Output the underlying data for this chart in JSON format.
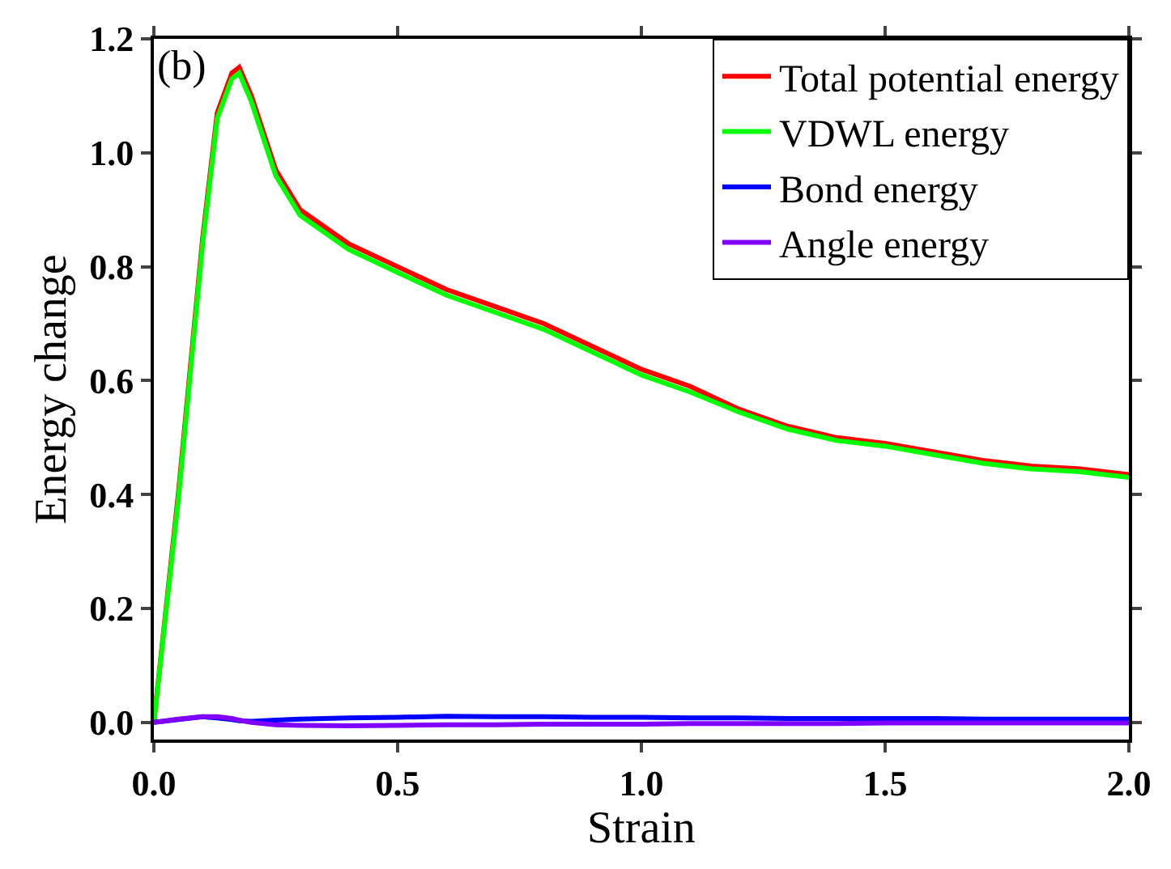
{
  "chart_data": {
    "type": "line",
    "xlabel": "Strain",
    "ylabel": "Energy change",
    "annotations": [
      "(b)"
    ],
    "x": [
      0,
      0.05,
      0.1,
      0.13,
      0.16,
      0.175,
      0.2,
      0.25,
      0.3,
      0.4,
      0.5,
      0.6,
      0.7,
      0.8,
      0.9,
      1.0,
      1.1,
      1.2,
      1.3,
      1.4,
      1.5,
      1.6,
      1.7,
      1.8,
      1.9,
      2.0
    ],
    "series": [
      {
        "name": "Total potential energy",
        "color": "#ff0000",
        "values": [
          0,
          0.4,
          0.85,
          1.07,
          1.14,
          1.15,
          1.1,
          0.97,
          0.9,
          0.84,
          0.8,
          0.76,
          0.73,
          0.7,
          0.66,
          0.62,
          0.59,
          0.55,
          0.52,
          0.5,
          0.49,
          0.475,
          0.46,
          0.45,
          0.445,
          0.435
        ]
      },
      {
        "name": "VDWL energy",
        "color": "#00ff00",
        "values": [
          0,
          0.39,
          0.84,
          1.06,
          1.13,
          1.14,
          1.09,
          0.96,
          0.89,
          0.83,
          0.79,
          0.75,
          0.72,
          0.69,
          0.65,
          0.61,
          0.58,
          0.545,
          0.515,
          0.495,
          0.485,
          0.47,
          0.455,
          0.445,
          0.44,
          0.43
        ]
      },
      {
        "name": "Bond energy",
        "color": "#0000ff",
        "values": [
          0,
          0.005,
          0.01,
          0.008,
          0.005,
          0.003,
          0.002,
          0.004,
          0.006,
          0.008,
          0.009,
          0.011,
          0.01,
          0.01,
          0.009,
          0.009,
          0.008,
          0.008,
          0.007,
          0.007,
          0.007,
          0.007,
          0.006,
          0.006,
          0.006,
          0.006
        ]
      },
      {
        "name": "Angle energy",
        "color": "#8000ff",
        "values": [
          0,
          0.006,
          0.01,
          0.01,
          0.007,
          0.004,
          0.0,
          -0.004,
          -0.005,
          -0.006,
          -0.005,
          -0.004,
          -0.004,
          -0.003,
          -0.003,
          -0.003,
          -0.002,
          -0.002,
          -0.002,
          -0.002,
          -0.001,
          -0.001,
          -0.001,
          -0.001,
          -0.001,
          -0.001
        ]
      }
    ],
    "xlim": [
      0,
      2.0
    ],
    "xticks": [
      {
        "value": 0,
        "label": "0.0"
      },
      0.5,
      {
        "value": 1,
        "label": "1.0"
      },
      1.5,
      {
        "value": 2,
        "label": "2.0"
      }
    ],
    "ylim": [
      -0.03,
      1.2
    ],
    "yticks": [
      {
        "value": 0,
        "label": "0.0"
      },
      0.2,
      0.4,
      0.6,
      0.8,
      {
        "value": 1,
        "label": "1.0"
      },
      1.2
    ],
    "legend": "top right",
    "marker": "none",
    "line_style": "solid"
  }
}
